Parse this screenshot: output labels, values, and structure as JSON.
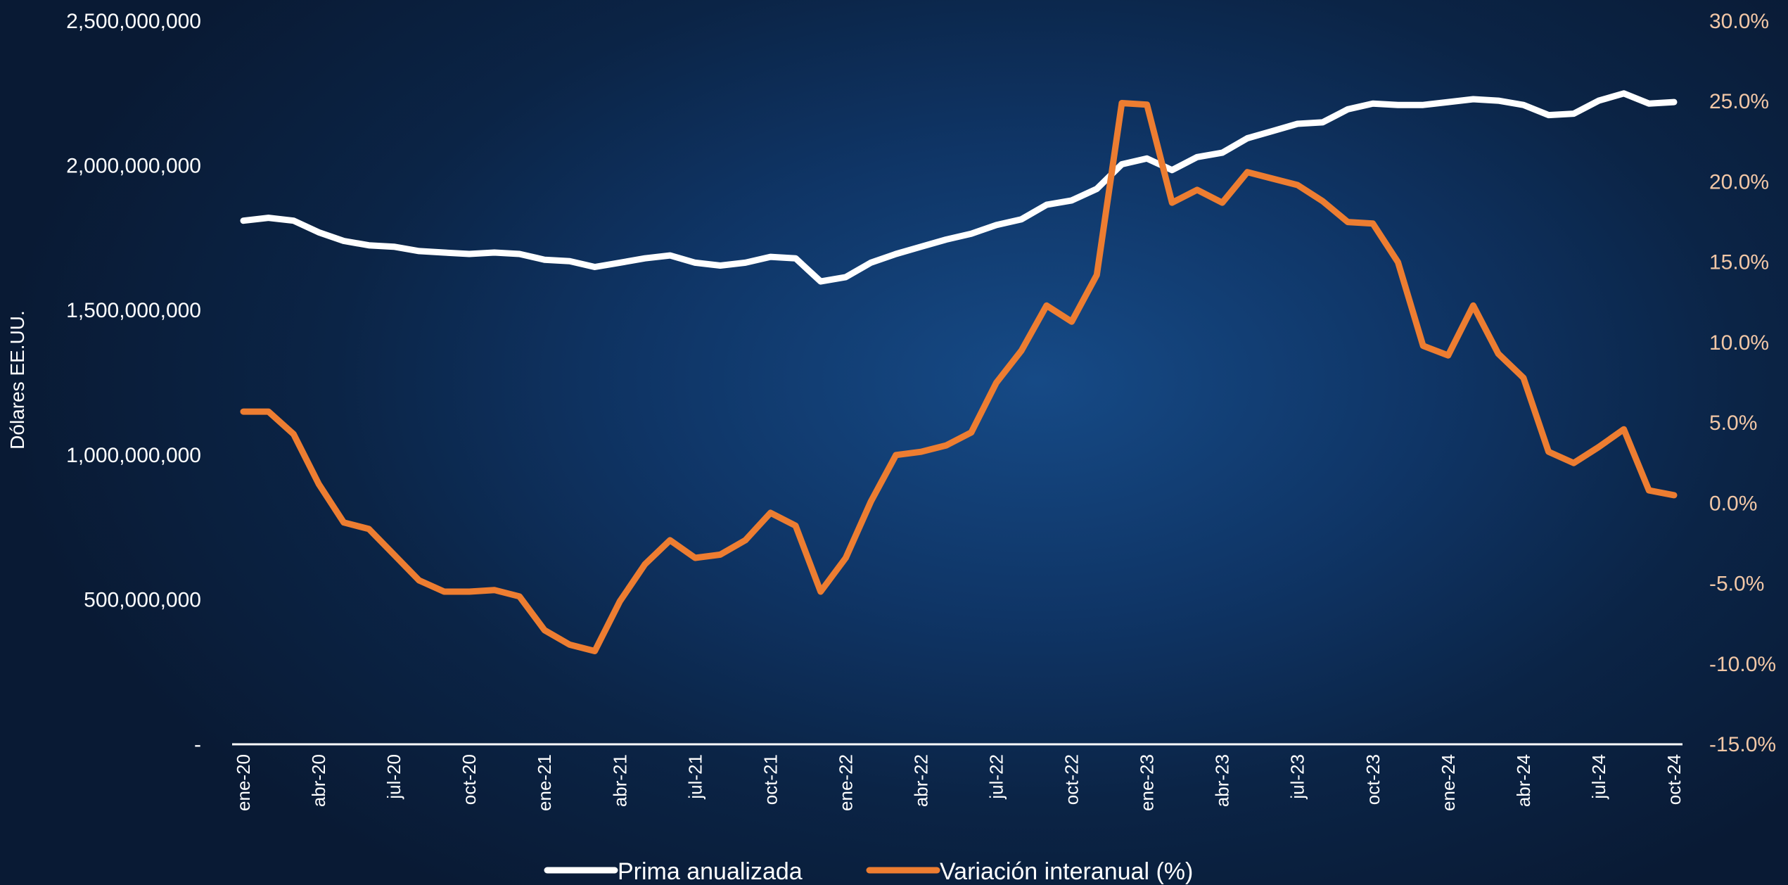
{
  "chart_data": {
    "type": "line",
    "title": "",
    "xlabel": "",
    "ylabel_left": "Dólares EE.UU.",
    "ylabel_right": "",
    "grid": false,
    "legend_position": "bottom",
    "x_tick_labels": [
      "ene-20",
      "abr-20",
      "jul-20",
      "oct-20",
      "ene-21",
      "abr-21",
      "jul-21",
      "oct-21",
      "ene-22",
      "abr-22",
      "jul-22",
      "oct-22",
      "ene-23",
      "abr-23",
      "jul-23",
      "oct-23",
      "ene-24",
      "abr-24",
      "jul-24",
      "oct-24"
    ],
    "y_left": {
      "min": 0,
      "max": 2500000000,
      "step": 500000000,
      "tick_labels": [
        "-",
        "500,000,000",
        "1,000,000,000",
        "1,500,000,000",
        "2,000,000,000",
        "2,500,000,000"
      ]
    },
    "y_right": {
      "min": -15,
      "max": 30,
      "step": 5,
      "tick_labels": [
        "-15.0%",
        "-10.0%",
        "-5.0%",
        "0.0%",
        "5.0%",
        "10.0%",
        "15.0%",
        "20.0%",
        "25.0%",
        "30.0%"
      ]
    },
    "x": [
      "ene-20",
      "feb-20",
      "mar-20",
      "abr-20",
      "may-20",
      "jun-20",
      "jul-20",
      "ago-20",
      "sep-20",
      "oct-20",
      "nov-20",
      "dic-20",
      "ene-21",
      "feb-21",
      "mar-21",
      "abr-21",
      "may-21",
      "jun-21",
      "jul-21",
      "ago-21",
      "sep-21",
      "oct-21",
      "nov-21",
      "dic-21",
      "ene-22",
      "feb-22",
      "mar-22",
      "abr-22",
      "may-22",
      "jun-22",
      "jul-22",
      "ago-22",
      "sep-22",
      "oct-22",
      "nov-22",
      "dic-22",
      "ene-23",
      "feb-23",
      "mar-23",
      "abr-23",
      "may-23",
      "jun-23",
      "jul-23",
      "ago-23",
      "sep-23",
      "oct-23",
      "nov-23",
      "dic-23",
      "ene-24",
      "feb-24",
      "mar-24",
      "abr-24",
      "may-24",
      "jun-24",
      "jul-24",
      "ago-24",
      "sep-24",
      "oct-24"
    ],
    "series": [
      {
        "name": "Prima anualizada",
        "axis": "left",
        "color": "#ffffff",
        "values": [
          1810000000,
          1820000000,
          1810000000,
          1770000000,
          1740000000,
          1725000000,
          1720000000,
          1705000000,
          1700000000,
          1695000000,
          1700000000,
          1695000000,
          1675000000,
          1670000000,
          1650000000,
          1665000000,
          1680000000,
          1690000000,
          1665000000,
          1655000000,
          1665000000,
          1685000000,
          1680000000,
          1600000000,
          1615000000,
          1665000000,
          1695000000,
          1720000000,
          1745000000,
          1765000000,
          1795000000,
          1815000000,
          1865000000,
          1880000000,
          1920000000,
          2005000000,
          2025000000,
          1985000000,
          2030000000,
          2045000000,
          2095000000,
          2120000000,
          2145000000,
          2150000000,
          2195000000,
          2215000000,
          2210000000,
          2210000000,
          2220000000,
          2230000000,
          2225000000,
          2210000000,
          2175000000,
          2180000000,
          2225000000,
          2250000000,
          2215000000,
          2220000000
        ]
      },
      {
        "name": "Variación interanual (%)",
        "axis": "right",
        "color": "#ed7d31",
        "values": [
          5.7,
          5.7,
          4.3,
          1.2,
          -1.2,
          -1.6,
          -3.2,
          -4.8,
          -5.5,
          -5.5,
          -5.4,
          -5.8,
          -7.9,
          -8.8,
          -9.2,
          -6.1,
          -3.8,
          -2.3,
          -3.4,
          -3.2,
          -2.3,
          -0.6,
          -1.4,
          -5.5,
          -3.4,
          0.1,
          3.0,
          3.2,
          3.6,
          4.4,
          7.5,
          9.5,
          12.3,
          11.3,
          14.2,
          24.9,
          24.8,
          18.7,
          19.5,
          18.7,
          20.6,
          20.2,
          19.8,
          18.8,
          17.5,
          17.4,
          15.0,
          9.8,
          9.2,
          12.3,
          9.3,
          7.8,
          3.2,
          2.5,
          3.5,
          4.6,
          0.8,
          0.5
        ]
      }
    ]
  }
}
